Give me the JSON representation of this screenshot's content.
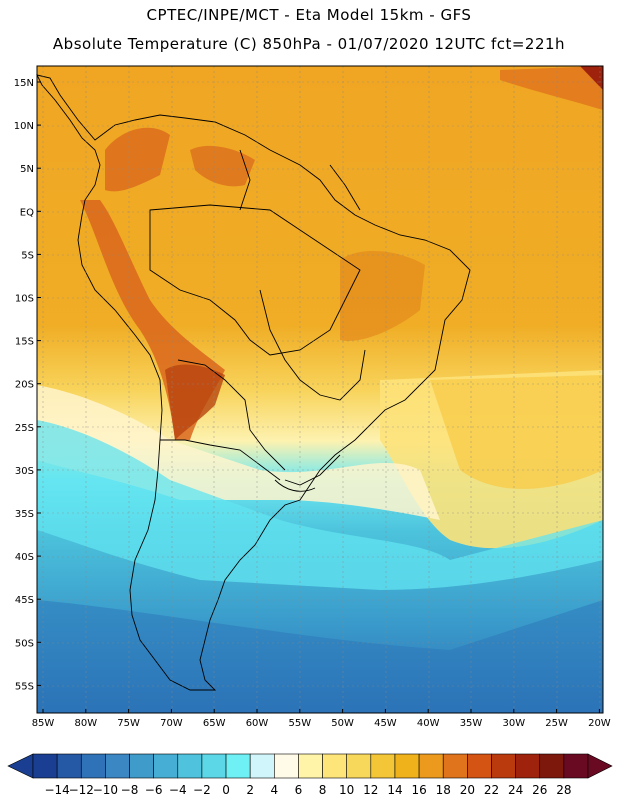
{
  "header": {
    "line1": "CPTEC/INPE/MCT -  Eta Model 15km - GFS",
    "line2": "Absolute Temperature (C) 850hPa - 01/07/2020 12UTC fct=221h"
  },
  "axes": {
    "lat_labels": [
      "15N",
      "10N",
      "5N",
      "EQ",
      "5S",
      "10S",
      "15S",
      "20S",
      "25S",
      "30S",
      "35S",
      "40S",
      "45S",
      "50S",
      "55S"
    ],
    "lon_labels": [
      "85W",
      "80W",
      "75W",
      "70W",
      "65W",
      "60W",
      "55W",
      "50W",
      "45W",
      "40W",
      "35W",
      "30W",
      "25W",
      "20W"
    ]
  },
  "colorbar": {
    "labels": [
      "-14",
      "-12",
      "-10",
      "-8",
      "-6",
      "-4",
      "-2",
      "0",
      "2",
      "4",
      "6",
      "8",
      "10",
      "12",
      "14",
      "16",
      "18",
      "20",
      "22",
      "24",
      "26",
      "28"
    ],
    "colors": [
      "#1a3f92",
      "#2559a6",
      "#2f72b7",
      "#3a87c4",
      "#3f9cca",
      "#46aed4",
      "#4fc2dd",
      "#5cd7e8",
      "#6ef0f4",
      "#d0f6fb",
      "#fffbe8",
      "#fff4a8",
      "#fde57a",
      "#f8d85a",
      "#f3c638",
      "#f0b21a",
      "#eb9a1e",
      "#e0741c",
      "#d45414",
      "#bb3a0d",
      "#9e220c",
      "#7d180c",
      "#6a0a22"
    ]
  },
  "colors": {
    "warm": "#f0aa22",
    "hot": "#d9651c",
    "cold": "#3e9fcd",
    "cyan": "#5fe0ee"
  }
}
